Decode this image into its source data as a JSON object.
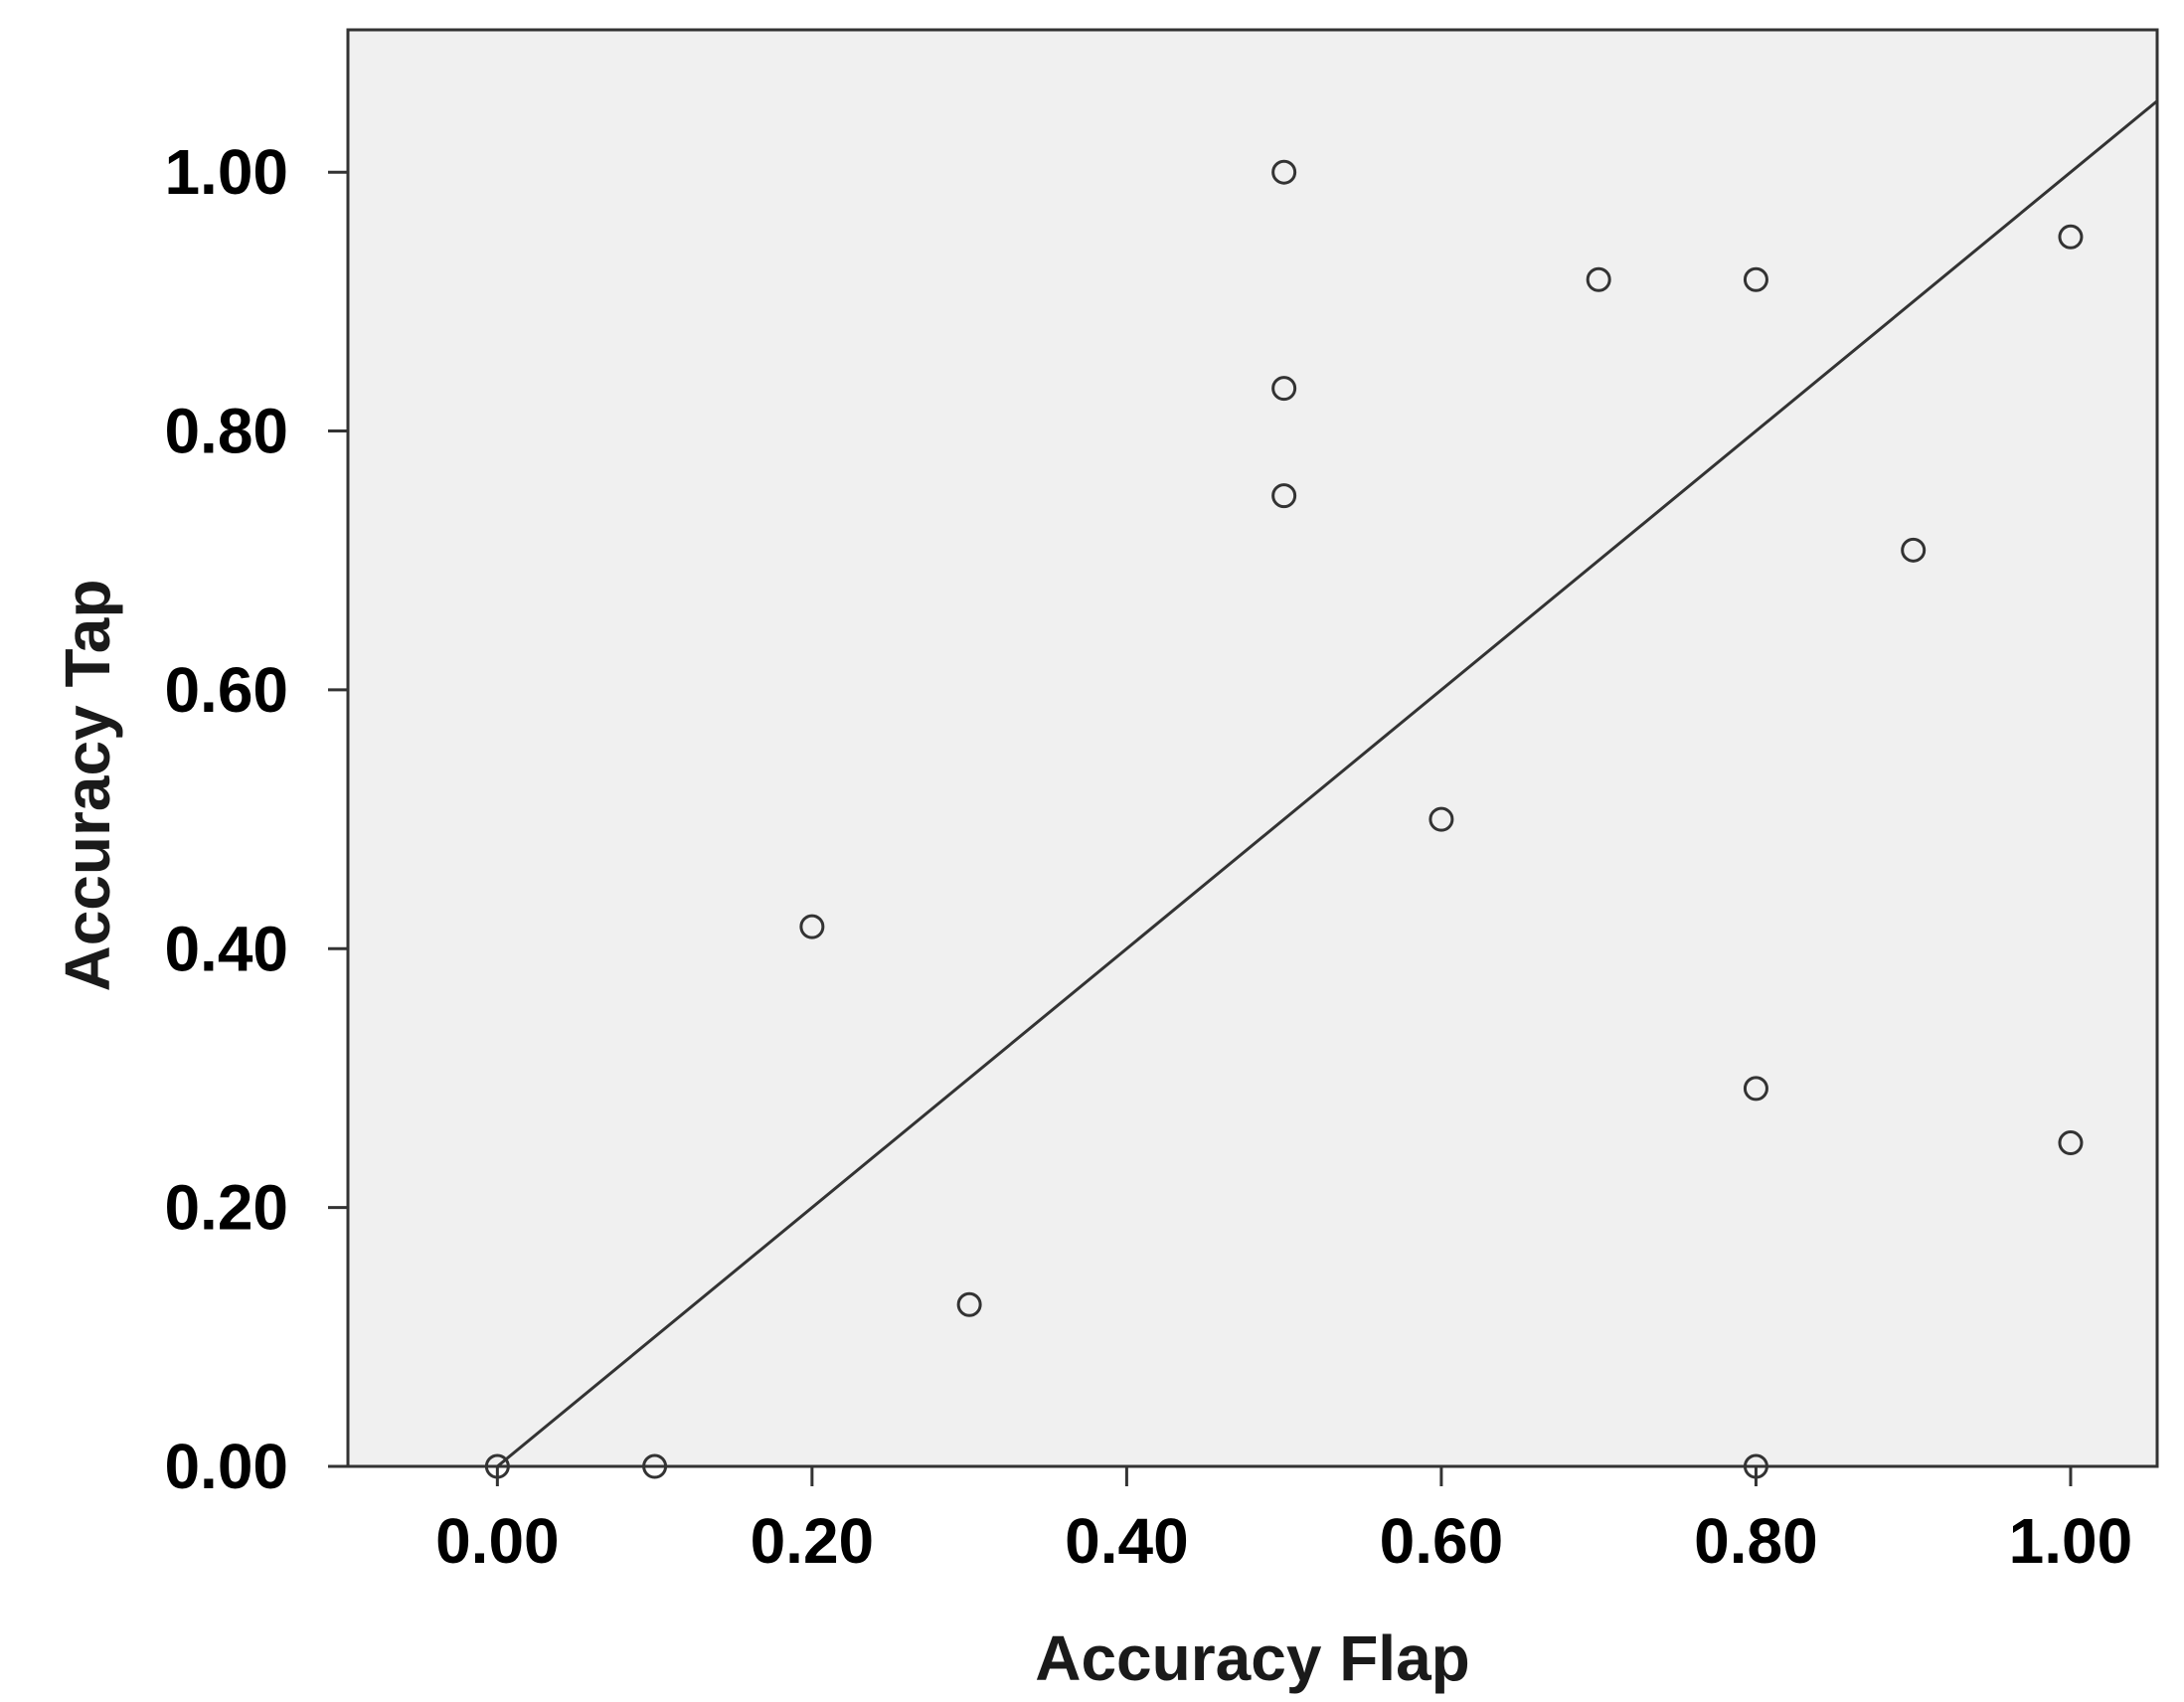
{
  "chart_data": {
    "type": "scatter",
    "title": "",
    "xlabel": "Accuracy Flap",
    "ylabel": "Accuracy Tap",
    "xlim": [
      -0.095,
      1.055
    ],
    "ylim": [
      0.0,
      1.11
    ],
    "x_ticks": [
      0.0,
      0.2,
      0.4,
      0.6,
      0.8,
      1.0
    ],
    "x_tick_labels": [
      "0.00",
      "0.20",
      "0.40",
      "0.60",
      "0.80",
      "1.00"
    ],
    "y_ticks": [
      0.0,
      0.2,
      0.4,
      0.6,
      0.8,
      1.0
    ],
    "y_tick_labels": [
      "0.00",
      "0.20",
      "0.40",
      "0.60",
      "0.80",
      "1.00"
    ],
    "grid": false,
    "legend": "none",
    "colors": {
      "plot_background": "#f0f0f0",
      "frame": "#333333",
      "marker": "#333333",
      "reference_line": "#333333"
    },
    "reference_line": {
      "type": "y=x",
      "x": [
        0.0,
        1.055
      ],
      "y": [
        0.0,
        1.055
      ]
    },
    "series": [
      {
        "marker": "open-circle",
        "points": [
          {
            "x": 0.0,
            "y": 0.0
          },
          {
            "x": 0.1,
            "y": 0.0
          },
          {
            "x": 0.2,
            "y": 0.417
          },
          {
            "x": 0.3,
            "y": 0.125
          },
          {
            "x": 0.5,
            "y": 1.0
          },
          {
            "x": 0.5,
            "y": 0.833
          },
          {
            "x": 0.5,
            "y": 0.75
          },
          {
            "x": 0.6,
            "y": 0.5
          },
          {
            "x": 0.7,
            "y": 0.917
          },
          {
            "x": 0.8,
            "y": 0.917
          },
          {
            "x": 0.8,
            "y": 0.292
          },
          {
            "x": 0.8,
            "y": 0.0
          },
          {
            "x": 0.9,
            "y": 0.708
          },
          {
            "x": 1.0,
            "y": 0.95
          },
          {
            "x": 1.0,
            "y": 0.25
          }
        ]
      }
    ]
  }
}
